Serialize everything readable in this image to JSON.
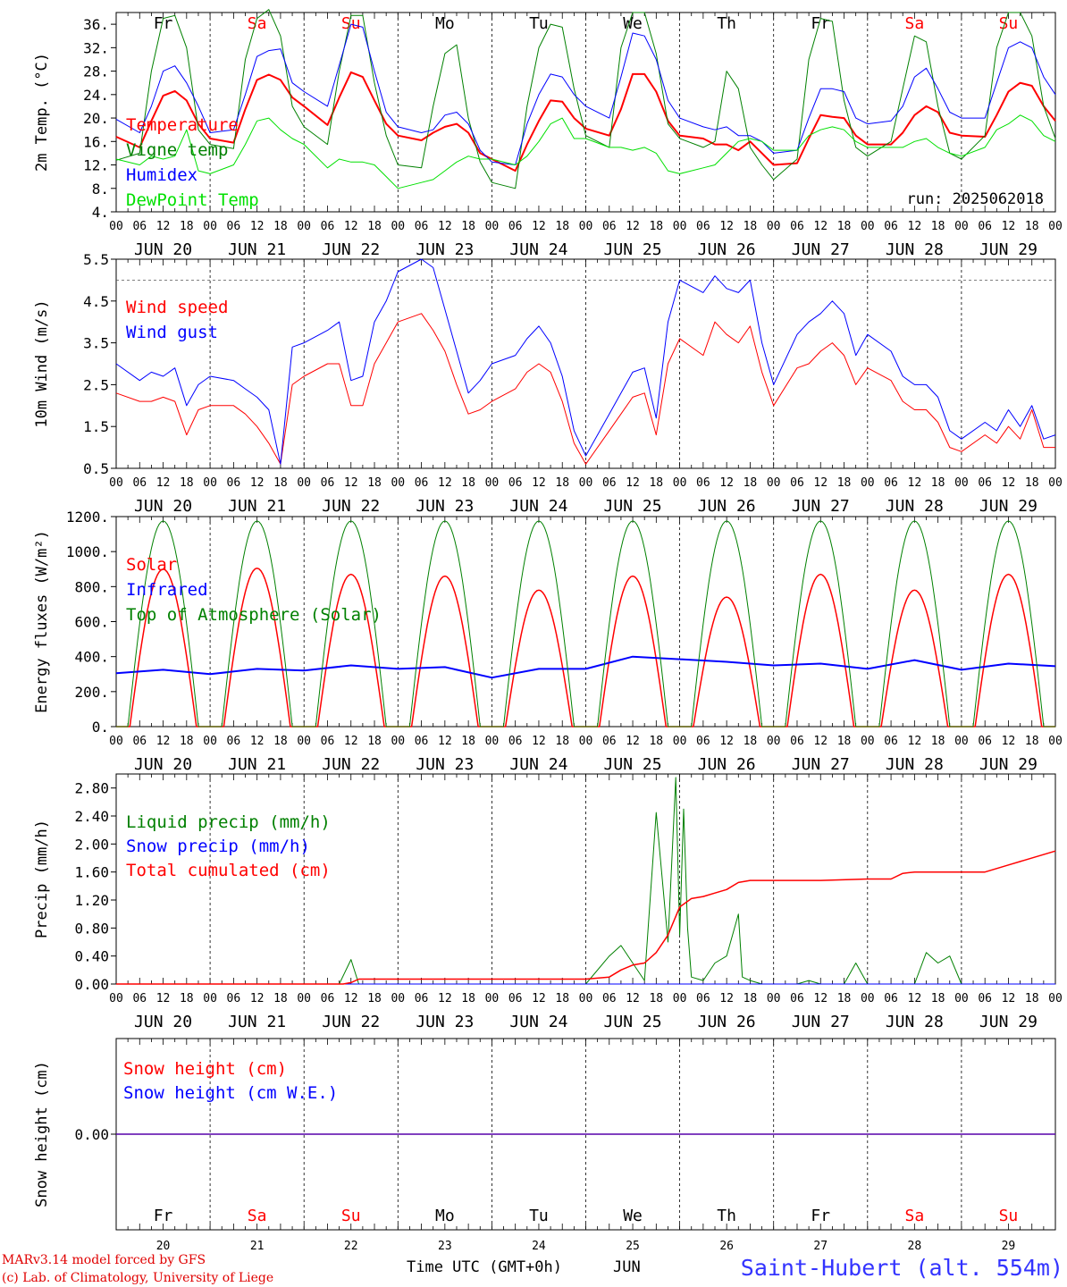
{
  "run_label": "run: 2025062018",
  "footer": {
    "credit_line1": "MARv3.14 model forced by GFS",
    "credit_line2": "(c) Lab. of Climatology, University of Liege",
    "xaxis_title": "Time UTC (GMT+0h)",
    "month": "JUN",
    "station": "Saint-Hubert (alt. 554m)"
  },
  "colors": {
    "red": "#ff0000",
    "green": "#008000",
    "blue": "#0000ff",
    "light_green": "#00e000",
    "black": "#000000",
    "dark_red": "#e00000"
  },
  "days": [
    {
      "dow": "Fr",
      "date": "JUN 20",
      "num": "20",
      "weekend": false
    },
    {
      "dow": "Sa",
      "date": "JUN 21",
      "num": "21",
      "weekend": true
    },
    {
      "dow": "Su",
      "date": "JUN 22",
      "num": "22",
      "weekend": true
    },
    {
      "dow": "Mo",
      "date": "JUN 23",
      "num": "23",
      "weekend": false
    },
    {
      "dow": "Tu",
      "date": "JUN 24",
      "num": "24",
      "weekend": false
    },
    {
      "dow": "We",
      "date": "JUN 25",
      "num": "25",
      "weekend": false
    },
    {
      "dow": "Th",
      "date": "JUN 26",
      "num": "26",
      "weekend": false
    },
    {
      "dow": "Fr",
      "date": "JUN 27",
      "num": "27",
      "weekend": false
    },
    {
      "dow": "Sa",
      "date": "JUN 28",
      "num": "28",
      "weekend": true
    },
    {
      "dow": "Su",
      "date": "JUN 29",
      "num": "29",
      "weekend": true
    }
  ],
  "hour_ticks": [
    "00",
    "06",
    "12",
    "18"
  ],
  "chart_data": [
    {
      "id": "temp",
      "type": "line",
      "ylabel": "2m Temp. (°C)",
      "ylim": [
        4,
        38
      ],
      "yticks": [
        "4.",
        "8.",
        "12.",
        "16.",
        "20.",
        "24.",
        "28.",
        "32.",
        "36."
      ],
      "ytick_values": [
        4,
        8,
        12,
        16,
        20,
        24,
        28,
        32,
        36
      ],
      "x_hours": [
        0,
        6,
        9,
        12,
        15,
        18,
        21,
        24,
        30,
        33,
        36,
        39,
        42,
        45,
        48,
        54,
        57,
        60,
        63,
        66,
        69,
        72,
        78,
        81,
        84,
        87,
        90,
        93,
        96,
        102,
        105,
        108,
        111,
        114,
        117,
        120,
        126,
        129,
        132,
        135,
        138,
        141,
        144,
        150,
        153,
        156,
        159,
        162,
        165,
        168,
        174,
        177,
        180,
        183,
        186,
        189,
        192,
        198,
        201,
        204,
        207,
        210,
        213,
        216,
        222,
        225,
        228,
        231,
        234,
        237,
        240
      ],
      "series": [
        {
          "name": "Temperature",
          "color": "#ff0000",
          "width": 2,
          "values": [
            16.8,
            15.0,
            19.5,
            23.8,
            24.6,
            23.0,
            19.0,
            16.5,
            15.8,
            21.5,
            26.5,
            27.4,
            26.5,
            23.5,
            22.0,
            18.8,
            23.5,
            27.8,
            27.0,
            23.0,
            19.0,
            17.0,
            16.2,
            17.5,
            18.5,
            19.0,
            17.5,
            14.0,
            13.0,
            11.0,
            15.5,
            19.5,
            23.0,
            22.8,
            20.0,
            18.2,
            17.0,
            21.5,
            27.5,
            27.5,
            24.5,
            19.5,
            17.0,
            16.5,
            15.5,
            15.5,
            14.5,
            16.0,
            14.0,
            12.0,
            12.3,
            16.5,
            20.5,
            20.2,
            20.0,
            17.0,
            15.5,
            15.5,
            17.5,
            20.5,
            22.0,
            21.0,
            17.5,
            17.0,
            16.8,
            20.5,
            24.5,
            26.0,
            25.5,
            22.0,
            19.5
          ]
        },
        {
          "name": "Vigne temp",
          "color": "#008000",
          "width": 1,
          "values": [
            12.8,
            14.0,
            28.0,
            37.0,
            37.5,
            32.0,
            18.0,
            15.5,
            14.8,
            30.0,
            37.0,
            38.5,
            34.0,
            22.0,
            18.5,
            15.5,
            28.0,
            37.5,
            37.5,
            26.0,
            17.0,
            12.0,
            11.5,
            22.0,
            31.0,
            32.5,
            20.0,
            12.5,
            9.0,
            8.0,
            22.0,
            32.0,
            36.0,
            35.5,
            25.0,
            17.0,
            15.0,
            32.0,
            38.0,
            38.0,
            31.0,
            19.0,
            16.5,
            15.0,
            16.0,
            28.0,
            25.0,
            15.0,
            12.0,
            9.5,
            13.0,
            30.0,
            37.0,
            36.5,
            23.0,
            15.0,
            13.5,
            16.0,
            25.0,
            34.0,
            33.0,
            22.0,
            14.0,
            13.0,
            17.0,
            32.0,
            38.0,
            38.0,
            34.0,
            22.0,
            16.5
          ]
        },
        {
          "name": "Humidex",
          "color": "#0000ff",
          "width": 1,
          "values": [
            19.8,
            17.5,
            22.0,
            28.0,
            28.9,
            26.0,
            22.0,
            17.5,
            18.0,
            24.0,
            30.5,
            31.5,
            31.8,
            26.0,
            24.5,
            22.0,
            29.0,
            36.0,
            35.5,
            28.0,
            21.0,
            18.5,
            17.5,
            18.0,
            20.5,
            21.0,
            19.0,
            14.5,
            12.5,
            12.0,
            19.0,
            24.0,
            27.5,
            27.0,
            24.0,
            22.0,
            20.0,
            27.0,
            34.5,
            34.0,
            30.0,
            23.0,
            20.0,
            18.5,
            18.0,
            18.5,
            17.0,
            17.0,
            16.0,
            14.0,
            14.5,
            20.0,
            25.0,
            25.0,
            24.5,
            20.0,
            19.0,
            19.5,
            22.0,
            27.0,
            28.5,
            25.0,
            21.0,
            20.0,
            20.0,
            26.0,
            32.0,
            33.0,
            32.0,
            27.0,
            24.0
          ]
        },
        {
          "name": "DewPoint Temp",
          "color": "#00e000",
          "width": 1,
          "values": [
            13.0,
            12.0,
            13.5,
            13.0,
            13.5,
            18.0,
            11.0,
            10.5,
            12.0,
            15.5,
            19.5,
            20.0,
            18.0,
            16.5,
            15.5,
            11.5,
            13.0,
            12.5,
            12.5,
            12.0,
            10.0,
            8.0,
            9.0,
            9.5,
            11.0,
            12.5,
            13.5,
            13.0,
            13.0,
            12.0,
            13.5,
            16.0,
            19.0,
            20.0,
            16.5,
            16.5,
            15.0,
            15.0,
            14.5,
            15.0,
            14.0,
            11.0,
            10.5,
            11.5,
            12.0,
            14.0,
            16.0,
            16.5,
            16.0,
            14.5,
            14.5,
            17.0,
            18.0,
            18.5,
            18.0,
            16.0,
            15.0,
            15.0,
            15.0,
            16.0,
            16.5,
            15.0,
            14.0,
            13.5,
            15.0,
            18.0,
            19.0,
            20.5,
            19.5,
            17.0,
            16.0
          ]
        }
      ]
    },
    {
      "id": "wind",
      "type": "line",
      "ylabel": "10m Wind (m/s)",
      "ylim": [
        0.5,
        5.5
      ],
      "yticks": [
        "0.5",
        "1.5",
        "2.5",
        "3.5",
        "4.5",
        "5.5"
      ],
      "ytick_values": [
        0.5,
        1.5,
        2.5,
        3.5,
        4.5,
        5.5
      ],
      "dashed_level": 5.0,
      "x_hours": [
        0,
        6,
        9,
        12,
        15,
        18,
        21,
        24,
        30,
        33,
        36,
        39,
        42,
        45,
        48,
        54,
        57,
        60,
        63,
        66,
        69,
        72,
        78,
        81,
        84,
        87,
        90,
        93,
        96,
        102,
        105,
        108,
        111,
        114,
        117,
        120,
        126,
        129,
        132,
        135,
        138,
        141,
        144,
        150,
        153,
        156,
        159,
        162,
        165,
        168,
        174,
        177,
        180,
        183,
        186,
        189,
        192,
        198,
        201,
        204,
        207,
        210,
        213,
        216,
        222,
        225,
        228,
        231,
        234,
        237,
        240
      ],
      "series": [
        {
          "name": "Wind speed",
          "color": "#ff0000",
          "width": 1,
          "values": [
            2.3,
            2.1,
            2.1,
            2.2,
            2.1,
            1.3,
            1.9,
            2.0,
            2.0,
            1.8,
            1.5,
            1.1,
            0.6,
            2.5,
            2.7,
            3.0,
            3.0,
            2.0,
            2.0,
            3.0,
            3.5,
            4.0,
            4.2,
            3.8,
            3.3,
            2.5,
            1.8,
            1.9,
            2.1,
            2.4,
            2.8,
            3.0,
            2.8,
            2.1,
            1.1,
            0.6,
            1.4,
            1.8,
            2.2,
            2.3,
            1.3,
            3.0,
            3.6,
            3.2,
            4.0,
            3.7,
            3.5,
            3.9,
            2.8,
            2.0,
            2.9,
            3.0,
            3.3,
            3.5,
            3.2,
            2.5,
            2.9,
            2.6,
            2.1,
            1.9,
            1.9,
            1.6,
            1.0,
            0.9,
            1.3,
            1.1,
            1.5,
            1.2,
            1.9,
            1.0,
            1.0
          ]
        },
        {
          "name": "Wind gust",
          "color": "#0000ff",
          "width": 1,
          "values": [
            3.0,
            2.6,
            2.8,
            2.7,
            2.9,
            2.0,
            2.5,
            2.7,
            2.6,
            2.4,
            2.2,
            1.9,
            0.6,
            3.4,
            3.5,
            3.8,
            4.0,
            2.6,
            2.7,
            4.0,
            4.5,
            5.2,
            5.5,
            5.3,
            4.3,
            3.3,
            2.3,
            2.6,
            3.0,
            3.2,
            3.6,
            3.9,
            3.5,
            2.7,
            1.4,
            0.8,
            1.8,
            2.3,
            2.8,
            2.9,
            1.7,
            4.0,
            5.0,
            4.7,
            5.1,
            4.8,
            4.7,
            5.0,
            3.5,
            2.5,
            3.7,
            4.0,
            4.2,
            4.5,
            4.2,
            3.2,
            3.7,
            3.3,
            2.7,
            2.5,
            2.5,
            2.2,
            1.4,
            1.2,
            1.6,
            1.4,
            1.9,
            1.5,
            2.0,
            1.2,
            1.3
          ]
        }
      ]
    },
    {
      "id": "energy",
      "type": "line",
      "ylabel": "Energy fluxes (W/m²)",
      "ylim": [
        0,
        1200
      ],
      "yticks": [
        "0.",
        "200.",
        "400.",
        "600.",
        "800.",
        "1000.",
        "1200."
      ],
      "ytick_values": [
        0,
        200,
        400,
        600,
        800,
        1000,
        1200
      ],
      "series": [
        {
          "name": "Solar",
          "color": "#ff0000",
          "width": 1.5,
          "day_peaks": [
            900,
            905,
            870,
            860,
            780,
            860,
            740,
            870,
            780,
            870
          ]
        },
        {
          "name": "Infrared",
          "color": "#0000ff",
          "width": 2,
          "x_hours": [
            0,
            12,
            24,
            36,
            48,
            60,
            72,
            84,
            96,
            108,
            120,
            132,
            144,
            156,
            168,
            180,
            192,
            204,
            216,
            228,
            240
          ],
          "values": [
            305,
            325,
            300,
            330,
            320,
            350,
            330,
            340,
            280,
            330,
            330,
            400,
            385,
            370,
            350,
            360,
            330,
            380,
            325,
            360,
            345
          ]
        },
        {
          "name": "Top of Atmosphere (Solar)",
          "color": "#008000",
          "width": 1,
          "peak": 1175
        }
      ]
    },
    {
      "id": "precip",
      "type": "line",
      "ylabel": "Precip (mm/h)",
      "ylim": [
        0,
        3.0
      ],
      "yticks": [
        "0.00",
        "0.40",
        "0.80",
        "1.20",
        "1.60",
        "2.00",
        "2.40",
        "2.80"
      ],
      "ytick_values": [
        0,
        0.4,
        0.8,
        1.2,
        1.6,
        2.0,
        2.4,
        2.8
      ],
      "series": [
        {
          "name": "Liquid precip (mm/h)",
          "color": "#008000",
          "width": 1,
          "x_hours": [
            0,
            48,
            57,
            60,
            62,
            64,
            120,
            126,
            129,
            132,
            135,
            138,
            141,
            143,
            144,
            145,
            146,
            147,
            150,
            153,
            156,
            159,
            160,
            162,
            165,
            168,
            174,
            177,
            180,
            186,
            189,
            192,
            204,
            207,
            210,
            213,
            216
          ],
          "values": [
            0,
            0,
            0,
            0.35,
            0,
            0,
            0,
            0.4,
            0.55,
            0.3,
            0.05,
            2.45,
            0.6,
            2.95,
            0.7,
            2.5,
            0.8,
            0.1,
            0.05,
            0.3,
            0.4,
            1.0,
            0.1,
            0.05,
            0,
            0,
            0,
            0.05,
            0,
            0,
            0.3,
            0,
            0,
            0.45,
            0.3,
            0.4,
            0
          ]
        },
        {
          "name": "Snow precip (mm/h)",
          "color": "#0000ff",
          "width": 1,
          "x_hours": [
            0,
            240
          ],
          "values": [
            0,
            0
          ]
        },
        {
          "name": "Total cumulated (cm)",
          "color": "#ff0000",
          "width": 1.5,
          "x_hours": [
            0,
            58,
            60,
            62,
            120,
            126,
            129,
            132,
            135,
            138,
            141,
            144,
            147,
            150,
            153,
            156,
            159,
            162,
            165,
            168,
            180,
            192,
            198,
            201,
            204,
            216,
            222,
            228,
            240
          ],
          "values": [
            0,
            0,
            0.02,
            0.07,
            0.07,
            0.1,
            0.2,
            0.27,
            0.3,
            0.45,
            0.7,
            1.1,
            1.22,
            1.25,
            1.3,
            1.35,
            1.45,
            1.48,
            1.48,
            1.48,
            1.48,
            1.5,
            1.5,
            1.58,
            1.6,
            1.6,
            1.6,
            1.7,
            1.9
          ]
        }
      ]
    },
    {
      "id": "snow",
      "type": "line",
      "ylabel": "Snow height (cm)",
      "ylim": [
        -1,
        1
      ],
      "yticks": [
        "0.00"
      ],
      "ytick_values": [
        0
      ],
      "series": [
        {
          "name": "Snow height (cm)",
          "color": "#ff0000",
          "width": 1.5,
          "x_hours": [
            0,
            240
          ],
          "values": [
            0,
            0
          ]
        },
        {
          "name": "Snow height (cm W.E.)",
          "color": "#0000ff",
          "width": 1,
          "x_hours": [
            0,
            240
          ],
          "values": [
            0,
            0
          ]
        }
      ]
    }
  ]
}
